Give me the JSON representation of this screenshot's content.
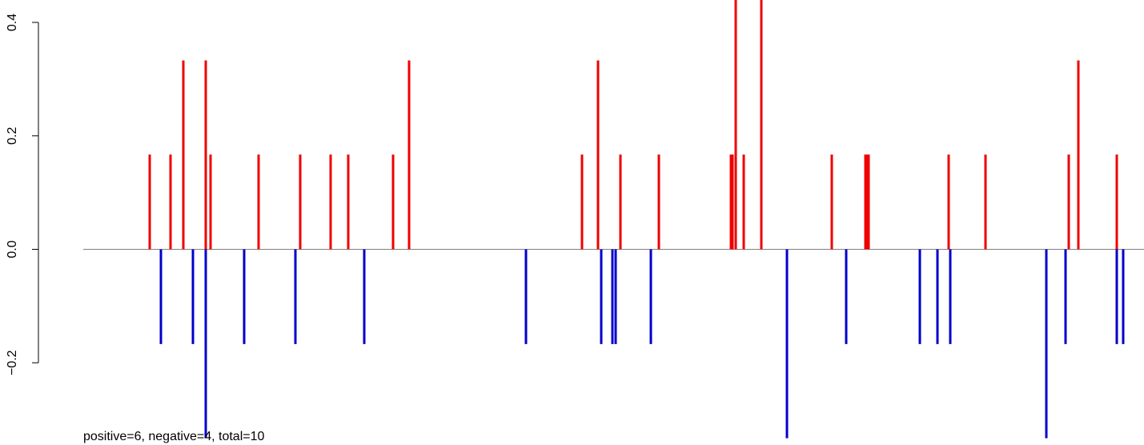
{
  "chart_data": {
    "type": "bar",
    "subtype": "vertical-lines",
    "caption": "positive=6, negative=4, total=10",
    "xlabel": "",
    "ylabel": "",
    "ylim": [
      -0.34,
      0.44
    ],
    "xlim": [
      0,
      64
    ],
    "y_ticks": [
      -0.2,
      0.0,
      0.2,
      0.4
    ],
    "y_tick_labels": [
      "−0.2",
      "0.0",
      "0.2",
      "0.4"
    ],
    "baseline": 0.0,
    "grid": false,
    "legend": "none",
    "colors": {
      "positive": "#ee0000",
      "negative": "#0000cc",
      "baseline": "#808080",
      "axis": "#000000"
    },
    "series": [
      {
        "name": "positive",
        "x": [
          3.6,
          4.9,
          5.7,
          7.1,
          7.4,
          10.4,
          13.0,
          14.9,
          16.0,
          18.8,
          19.8,
          30.6,
          31.6,
          33.0,
          35.4,
          39.9,
          40.0,
          40.2,
          40.7,
          41.8,
          46.2,
          48.3,
          48.4,
          48.5,
          53.5,
          55.8,
          61.0,
          61.6,
          64.0
        ],
        "values": [
          0.167,
          0.167,
          0.333,
          0.333,
          0.167,
          0.167,
          0.167,
          0.167,
          0.167,
          0.167,
          0.333,
          0.167,
          0.333,
          0.167,
          0.167,
          0.167,
          0.167,
          0.5,
          0.167,
          0.5,
          0.167,
          0.167,
          0.167,
          0.167,
          0.167,
          0.167,
          0.167,
          0.333,
          0.167
        ]
      },
      {
        "name": "negative",
        "x": [
          4.3,
          6.3,
          7.1,
          9.5,
          12.7,
          17.0,
          27.1,
          31.8,
          32.5,
          32.7,
          34.9,
          43.4,
          47.1,
          51.7,
          52.8,
          53.6,
          59.6,
          60.8,
          64.0,
          64.4
        ],
        "values": [
          -0.167,
          -0.167,
          -0.333,
          -0.167,
          -0.167,
          -0.167,
          -0.167,
          -0.167,
          -0.167,
          -0.167,
          -0.167,
          -0.333,
          -0.167,
          -0.167,
          -0.167,
          -0.167,
          -0.333,
          -0.167,
          -0.167,
          -0.167
        ]
      }
    ]
  }
}
